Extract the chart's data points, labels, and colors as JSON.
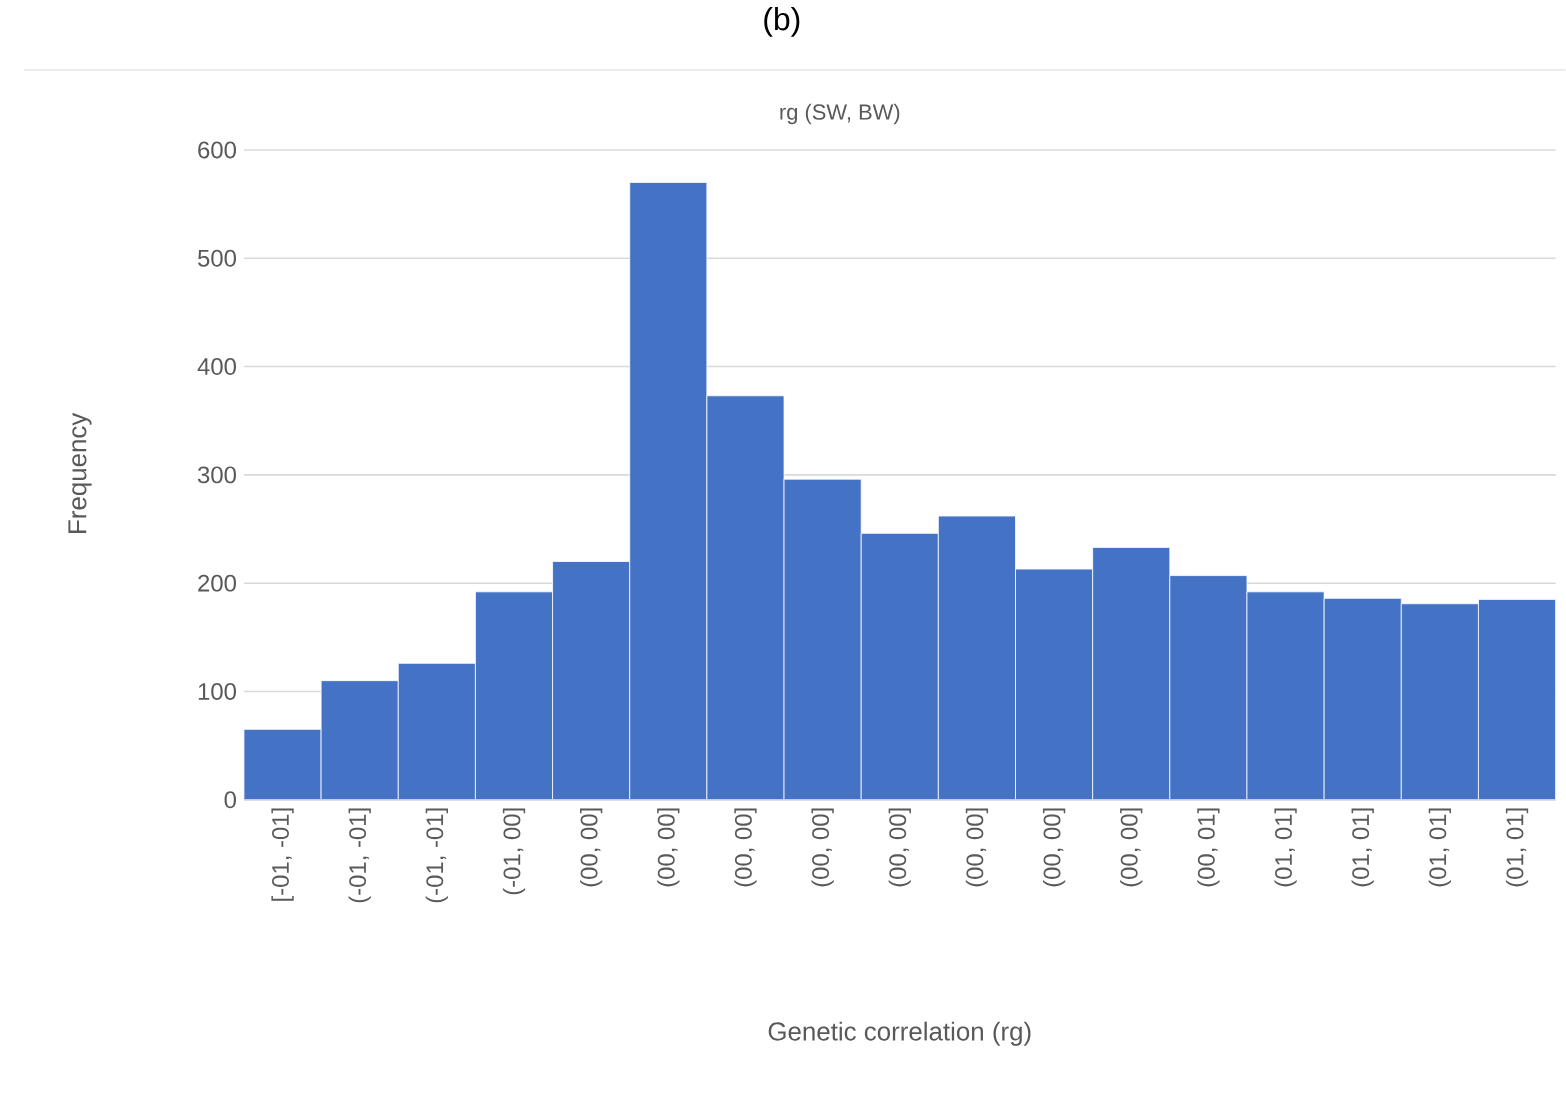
{
  "chart_data": {
    "type": "bar",
    "title": "(b)",
    "subtitle": "rg (SW, BW)",
    "xlabel": "Genetic correlation (rg)",
    "ylabel": "Frequency",
    "categories": [
      "[-01, -01]",
      "(-01, -01]",
      "(-01, -01]",
      "(-01, 00]",
      "(00, 00]",
      "(00, 00]",
      "(00, 00]",
      "(00, 00]",
      "(00, 00]",
      "(00, 00]",
      "(00, 00]",
      "(00, 00]",
      "(00, 01]",
      "(01, 01]",
      "(01, 01]",
      "(01, 01]",
      "(01, 01]"
    ],
    "values": [
      65,
      110,
      126,
      192,
      220,
      570,
      373,
      296,
      246,
      262,
      213,
      233,
      207,
      192,
      186,
      181,
      185
    ],
    "color": "#4472c4",
    "ylim": [
      0,
      600
    ],
    "yticks": [
      0,
      100,
      200,
      300,
      400,
      500,
      600
    ],
    "grid": "y"
  }
}
